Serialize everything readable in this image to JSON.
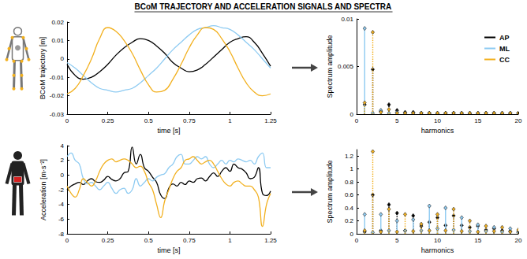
{
  "title": "BCoM TRAJECTORY AND ACCELERATION SIGNALS AND SPECTRA",
  "chart_data": [
    {
      "type": "line",
      "xlabel": "time [s]",
      "ylabel": "BCoM trajectory [m]",
      "xlim": [
        0,
        1.25
      ],
      "xticks": [
        0,
        0.25,
        0.5,
        0.75,
        1,
        1.25
      ],
      "ylim": [
        -0.03,
        0.02
      ],
      "yticks": [
        -0.03,
        -0.02,
        -0.01,
        0,
        0.01,
        0.02
      ],
      "grid": false,
      "x": [
        0,
        0.05,
        0.1,
        0.15,
        0.2,
        0.25,
        0.3,
        0.35,
        0.4,
        0.45,
        0.5,
        0.55,
        0.6,
        0.65,
        0.7,
        0.75,
        0.8,
        0.85,
        0.9,
        0.95,
        1.0,
        1.05,
        1.1,
        1.15,
        1.2,
        1.25
      ],
      "series": [
        {
          "name": "AP",
          "color": "#000000",
          "values": [
            -0.003,
            -0.009,
            -0.011,
            -0.01,
            -0.007,
            -0.003,
            0.002,
            0.006,
            0.009,
            0.011,
            0.01,
            0.007,
            0.003,
            -0.002,
            -0.005,
            -0.007,
            -0.006,
            -0.003,
            0.001,
            0.005,
            0.009,
            0.011,
            0.012,
            0.009,
            0.003,
            -0.004
          ]
        },
        {
          "name": "ML",
          "color": "#8ecbf2",
          "values": [
            -0.002,
            -0.005,
            -0.009,
            -0.013,
            -0.016,
            -0.017,
            -0.018,
            -0.017,
            -0.016,
            -0.013,
            -0.009,
            -0.005,
            0.0,
            0.005,
            0.009,
            0.013,
            0.016,
            0.017,
            0.018,
            0.017,
            0.016,
            0.013,
            0.009,
            0.005,
            0.0,
            -0.005
          ]
        },
        {
          "name": "CC",
          "color": "#f2b01e",
          "values": [
            -0.019,
            -0.016,
            -0.009,
            0.0,
            0.011,
            0.017,
            0.015,
            0.01,
            0.003,
            -0.006,
            -0.014,
            -0.018,
            -0.017,
            -0.011,
            -0.003,
            0.006,
            0.013,
            0.017,
            0.016,
            0.011,
            0.004,
            -0.005,
            -0.013,
            -0.018,
            -0.02,
            -0.019
          ]
        }
      ]
    },
    {
      "type": "stem",
      "xlabel": "harmonics",
      "ylabel": "Spectrum amplitude",
      "xlim": [
        0,
        20
      ],
      "xticks": [
        0,
        5,
        10,
        15,
        20
      ],
      "ylim": [
        0,
        0.01
      ],
      "yticks": [
        0,
        0.005,
        0.01
      ],
      "grid": false,
      "legend": "upper right",
      "marker": "diamond",
      "x": [
        1,
        2,
        3,
        4,
        5,
        6,
        7,
        8,
        9,
        10,
        11,
        12,
        13,
        14,
        15,
        16,
        17,
        18,
        19,
        20
      ],
      "series": [
        {
          "name": "AP",
          "color": "#000000",
          "line_style": "dotted",
          "values": [
            0.001,
            0.0047,
            0.0003,
            0.001,
            0.0004,
            0.0002,
            0.0002,
            0.0001,
            0.0001,
            0.0001,
            0.0001,
            0.0001,
            0.0001,
            0.0001,
            0.0001,
            0.0001,
            0.0001,
            0.0001,
            0.0001,
            0.0001
          ]
        },
        {
          "name": "ML",
          "color": "#8ecbf2",
          "line_style": "solid",
          "values": [
            0.009,
            0.0001,
            0.0004,
            0.0001,
            0.0002,
            0.0001,
            0.0001,
            0.0001,
            0.0001,
            0.0001,
            0.0001,
            0.0001,
            0.0001,
            0.0001,
            0.0001,
            0.0001,
            0.0001,
            0.0001,
            0.0001,
            0.0001
          ]
        },
        {
          "name": "CC",
          "color": "#f2b01e",
          "line_style": "dotted",
          "values": [
            0.0012,
            0.0086,
            0.0002,
            0.0005,
            0.0001,
            0.0001,
            0.0001,
            0.0001,
            0.0001,
            0.0001,
            0.0001,
            0.0001,
            0.0001,
            0.0001,
            0.0001,
            0.0001,
            0.0001,
            0.0001,
            0.0001,
            0.0001
          ]
        }
      ]
    },
    {
      "type": "line",
      "xlabel": "time [s]",
      "ylabel": "Acceleration [m·s⁻²]",
      "xlim": [
        0,
        1.25
      ],
      "xticks": [
        0,
        0.25,
        0.5,
        0.75,
        1,
        1.25
      ],
      "ylim": [
        -8,
        4
      ],
      "yticks": [
        -8,
        -6,
        -4,
        -2,
        0,
        2,
        4
      ],
      "grid": false,
      "x": [
        0,
        0.025,
        0.05,
        0.075,
        0.1,
        0.125,
        0.15,
        0.175,
        0.2,
        0.225,
        0.25,
        0.275,
        0.3,
        0.325,
        0.35,
        0.375,
        0.4,
        0.425,
        0.45,
        0.475,
        0.5,
        0.525,
        0.55,
        0.575,
        0.6,
        0.625,
        0.65,
        0.675,
        0.7,
        0.725,
        0.75,
        0.775,
        0.8,
        0.825,
        0.85,
        0.875,
        0.9,
        0.925,
        0.95,
        0.975,
        1.0,
        1.025,
        1.05,
        1.075,
        1.1,
        1.125,
        1.15,
        1.175,
        1.2,
        1.225,
        1.25
      ],
      "series": [
        {
          "name": "AP",
          "color": "#000000",
          "values": [
            -2,
            -1.5,
            -1.2,
            -1.0,
            -1.3,
            -0.8,
            -0.5,
            -0.9,
            -1.0,
            -0.7,
            -0.2,
            -0.6,
            -0.8,
            -0.5,
            0.3,
            0.5,
            3.8,
            1.5,
            2.8,
            1.0,
            0.5,
            -0.3,
            -1.0,
            -2.7,
            -3.2,
            -1.8,
            -1.2,
            -1.5,
            -1.0,
            -1.3,
            -0.8,
            -1.0,
            -0.5,
            -0.4,
            -0.8,
            -0.2,
            0.3,
            -0.2,
            0.5,
            1.0,
            0.5,
            1.5,
            1.0,
            0.8,
            0.3,
            -0.5,
            -0.3,
            1.0,
            -2.5,
            -2.8,
            -2.2
          ]
        },
        {
          "name": "ML",
          "color": "#8ecbf2",
          "values": [
            2.5,
            3.0,
            2.0,
            1.5,
            -0.5,
            -1.2,
            -1.0,
            -1.5,
            -2.0,
            -1.5,
            -1.0,
            -1.8,
            -2.5,
            -2.0,
            -1.8,
            -2.5,
            -2.0,
            -0.5,
            -1.5,
            -1.0,
            -0.5,
            -0.8,
            -0.3,
            0.0,
            0.2,
            1.0,
            1.5,
            2.5,
            2.8,
            1.5,
            1.5,
            2.0,
            2.5,
            2.2,
            2.5,
            1.5,
            1.0,
            1.5,
            2.0,
            1.5,
            2.0,
            1.8,
            2.2,
            2.0,
            1.8,
            2.0,
            1.5,
            2.5,
            3.0,
            1.0,
            1.0
          ]
        },
        {
          "name": "CC",
          "color": "#f2b01e",
          "values": [
            -1.5,
            -2.5,
            -3.0,
            -2.0,
            -0.5,
            -1.0,
            -1.5,
            -0.8,
            0.5,
            1.5,
            2.0,
            2.2,
            1.8,
            2.0,
            2.2,
            2.0,
            1.5,
            1.0,
            1.2,
            0.5,
            -1.0,
            -2.0,
            -4.0,
            -5.8,
            -3.5,
            -2.0,
            -0.5,
            0.5,
            1.0,
            2.0,
            2.2,
            2.5,
            2.0,
            1.5,
            1.8,
            2.0,
            1.5,
            0.5,
            -0.5,
            -1.2,
            -1.5,
            -1.0,
            -0.8,
            -1.2,
            -1.5,
            -1.5,
            -2.0,
            -3.0,
            -7.0,
            -4.0,
            -2.5
          ]
        }
      ]
    },
    {
      "type": "stem",
      "xlabel": "harmonics",
      "ylabel": "Spectrum amplitude",
      "xlim": [
        0,
        20
      ],
      "xticks": [
        0,
        5,
        10,
        15,
        20
      ],
      "ylim": [
        0,
        1.3
      ],
      "yticks": [
        0,
        0.2,
        0.4,
        0.6,
        0.8,
        1,
        1.2
      ],
      "grid": false,
      "marker": "diamond",
      "x": [
        1,
        2,
        3,
        4,
        5,
        6,
        7,
        8,
        9,
        10,
        11,
        12,
        13,
        14,
        15,
        16,
        17,
        18,
        19,
        20
      ],
      "series": [
        {
          "name": "AP",
          "color": "#000000",
          "line_style": "dotted",
          "values": [
            0.03,
            0.6,
            0.05,
            0.45,
            0.32,
            0.05,
            0.28,
            0.12,
            0.18,
            0.25,
            0.13,
            0.28,
            0.13,
            0.1,
            0.12,
            0.06,
            0.08,
            0.05,
            0.04,
            0.03
          ]
        },
        {
          "name": "ML",
          "color": "#8ecbf2",
          "line_style": "solid",
          "values": [
            0.3,
            0.02,
            0.3,
            0.05,
            0.2,
            0.05,
            0.22,
            0.05,
            0.43,
            0.08,
            0.4,
            0.06,
            0.25,
            0.04,
            0.14,
            0.04,
            0.1,
            0.03,
            0.08,
            0.02
          ]
        },
        {
          "name": "CC",
          "color": "#f2b01e",
          "line_style": "dotted",
          "values": [
            0.05,
            1.27,
            0.03,
            0.38,
            0.03,
            0.3,
            0.04,
            0.15,
            0.05,
            0.3,
            0.05,
            0.38,
            0.04,
            0.2,
            0.03,
            0.12,
            0.04,
            0.1,
            0.03,
            0.06
          ]
        }
      ]
    }
  ]
}
